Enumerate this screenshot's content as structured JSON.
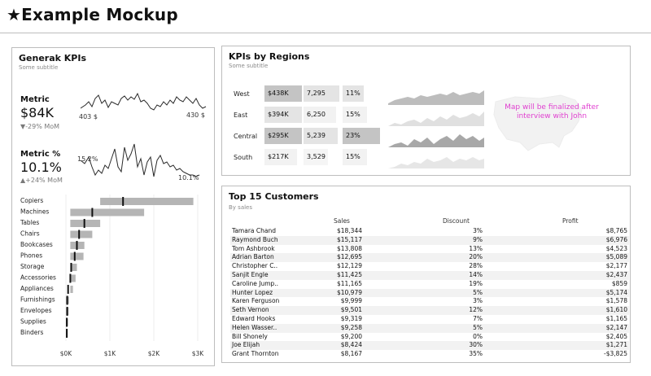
{
  "header": {
    "title": "★Example Mockup"
  },
  "general_kpis": {
    "title": "Generak KPIs",
    "subtitle": "Some subtitle",
    "metric1": {
      "label": "Metric",
      "value": "$84K",
      "delta": "▼-29% MoM",
      "start_label": "403 $",
      "end_label": "430 $"
    },
    "metric2": {
      "label": "Metric %",
      "value": "10.1%",
      "delta": "▲+24% MoM",
      "start_label": "15.2%",
      "end_label": "10.1%"
    }
  },
  "categories": {
    "axis_ticks": [
      "$0K",
      "$1K",
      "$2K",
      "$3K"
    ]
  },
  "chart_data": [
    {
      "type": "bar",
      "categories": [
        "Copiers",
        "Machines",
        "Tables",
        "Chairs",
        "Bookcases",
        "Phones",
        "Storage",
        "Accessories",
        "Appliances",
        "Furnishings",
        "Envelopes",
        "Supplies",
        "Binders"
      ],
      "bar_range": [
        [
          0.78,
          2.9
        ],
        [
          0.1,
          1.78
        ],
        [
          0.1,
          0.78
        ],
        [
          0.1,
          0.6
        ],
        [
          0.1,
          0.42
        ],
        [
          0.1,
          0.4
        ],
        [
          0.1,
          0.25
        ],
        [
          0.1,
          0.22
        ],
        [
          0.1,
          0.16
        ],
        [
          0.0,
          0.07
        ],
        [
          0.0,
          0.06
        ],
        [
          0.0,
          0.05
        ],
        [
          0.0,
          0.04
        ]
      ],
      "markers": [
        1.3,
        0.6,
        0.42,
        0.3,
        0.25,
        0.2,
        0.12,
        0.1,
        0.05,
        0.03,
        0.03,
        0.02,
        0.02
      ],
      "xlim": [
        0,
        3
      ],
      "xlabel": "",
      "ylabel": ""
    }
  ],
  "regions": {
    "title": "KPIs by Regions",
    "subtitle": "Some subtitle",
    "map_note": "Map will be finalized after interview with John",
    "rows": [
      {
        "name": "West",
        "sales": "$438K",
        "count": "7,295",
        "pct": "11%"
      },
      {
        "name": "East",
        "sales": "$394K",
        "count": "6,250",
        "pct": "15%"
      },
      {
        "name": "Central",
        "sales": "$295K",
        "count": "5,239",
        "pct": "23%"
      },
      {
        "name": "South",
        "sales": "$217K",
        "count": "3,529",
        "pct": "15%"
      }
    ]
  },
  "customers": {
    "title": "Top 15 Customers",
    "subtitle": "By sales",
    "headers": {
      "sales": "Sales",
      "discount": "Discount",
      "profit": "Profit"
    },
    "rows": [
      {
        "name": "Tamara Chand",
        "sales": "$18,344",
        "discount": "3%",
        "profit": "$8,765"
      },
      {
        "name": "Raymond Buch",
        "sales": "$15,117",
        "discount": "9%",
        "profit": "$6,976"
      },
      {
        "name": "Tom Ashbrook",
        "sales": "$13,808",
        "discount": "13%",
        "profit": "$4,523"
      },
      {
        "name": "Adrian Barton",
        "sales": "$12,695",
        "discount": "20%",
        "profit": "$5,089"
      },
      {
        "name": "Christopher C..",
        "sales": "$12,129",
        "discount": "28%",
        "profit": "$2,177"
      },
      {
        "name": "Sanjit Engle",
        "sales": "$11,425",
        "discount": "14%",
        "profit": "$2,437"
      },
      {
        "name": "Caroline Jump..",
        "sales": "$11,165",
        "discount": "19%",
        "profit": "$859"
      },
      {
        "name": "Hunter Lopez",
        "sales": "$10,979",
        "discount": "5%",
        "profit": "$5,174"
      },
      {
        "name": "Karen Ferguson",
        "sales": "$9,999",
        "discount": "3%",
        "profit": "$1,578"
      },
      {
        "name": "Seth Vernon",
        "sales": "$9,501",
        "discount": "12%",
        "profit": "$1,610"
      },
      {
        "name": "Edward Hooks",
        "sales": "$9,319",
        "discount": "7%",
        "profit": "$1,165"
      },
      {
        "name": "Helen Wasser..",
        "sales": "$9,258",
        "discount": "5%",
        "profit": "$2,147"
      },
      {
        "name": "Bill Shonely",
        "sales": "$9,200",
        "discount": "0%",
        "profit": "$2,405"
      },
      {
        "name": "Joe Elijah",
        "sales": "$8,424",
        "discount": "30%",
        "profit": "$1,271"
      },
      {
        "name": "Grant Thornton",
        "sales": "$8,167",
        "discount": "35%",
        "profit": "-$3,825"
      }
    ]
  },
  "colors": {
    "bar": "#b5b5b5",
    "line": "#2a2a2a",
    "kpi_cell": "#e4e4e4",
    "kpi_cell_dark": "#c4c4c4",
    "map_note": "#e040d0"
  }
}
